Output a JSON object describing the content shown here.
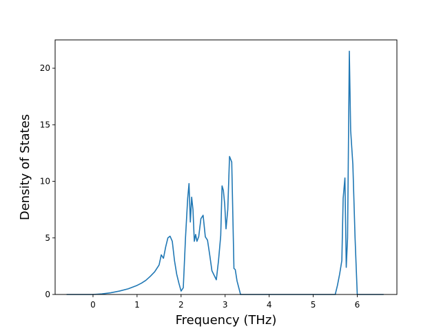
{
  "chart_data": {
    "type": "line",
    "title": "",
    "xlabel": "Frequency (THz)",
    "ylabel": "Density of States",
    "xlim": [
      -0.86,
      6.9
    ],
    "ylim": [
      0,
      22.5
    ],
    "xticks": [
      0,
      1,
      2,
      3,
      4,
      5,
      6
    ],
    "yticks": [
      0,
      5,
      10,
      15,
      20
    ],
    "grid": false,
    "legend": "none",
    "series": [
      {
        "color": "#1f77b4",
        "x": [
          -0.6,
          -0.3,
          0.0,
          0.2,
          0.4,
          0.6,
          0.8,
          1.0,
          1.1,
          1.2,
          1.3,
          1.4,
          1.5,
          1.55,
          1.6,
          1.65,
          1.7,
          1.75,
          1.8,
          1.85,
          1.9,
          1.95,
          2.0,
          2.05,
          2.1,
          2.15,
          2.18,
          2.21,
          2.24,
          2.27,
          2.3,
          2.33,
          2.36,
          2.4,
          2.45,
          2.5,
          2.55,
          2.6,
          2.65,
          2.7,
          2.8,
          2.85,
          2.9,
          2.93,
          2.96,
          2.99,
          3.02,
          3.06,
          3.1,
          3.15,
          3.2,
          3.23,
          3.27,
          3.35,
          4.0,
          4.5,
          5.0,
          5.5,
          5.55,
          5.6,
          5.65,
          5.68,
          5.72,
          5.75,
          5.78,
          5.82,
          5.85,
          5.9,
          5.95,
          6.0,
          6.3,
          6.6
        ],
        "y": [
          0,
          0,
          0,
          0.05,
          0.15,
          0.3,
          0.5,
          0.8,
          1.0,
          1.25,
          1.6,
          2.0,
          2.6,
          3.5,
          3.2,
          4.2,
          5.0,
          5.15,
          4.7,
          3.0,
          1.8,
          1.0,
          0.3,
          0.6,
          5.0,
          8.5,
          9.8,
          6.4,
          8.6,
          7.5,
          4.7,
          5.3,
          4.7,
          5.1,
          6.7,
          7.0,
          5.1,
          4.8,
          3.5,
          2.1,
          1.3,
          3.0,
          5.2,
          9.6,
          9.2,
          8.0,
          5.8,
          7.5,
          12.2,
          11.7,
          2.3,
          2.2,
          1.2,
          0,
          0,
          0,
          0,
          0,
          0.8,
          1.8,
          3.0,
          8.5,
          10.3,
          2.4,
          5.0,
          21.5,
          14.5,
          11.5,
          5.0,
          0,
          0,
          0
        ]
      }
    ]
  }
}
